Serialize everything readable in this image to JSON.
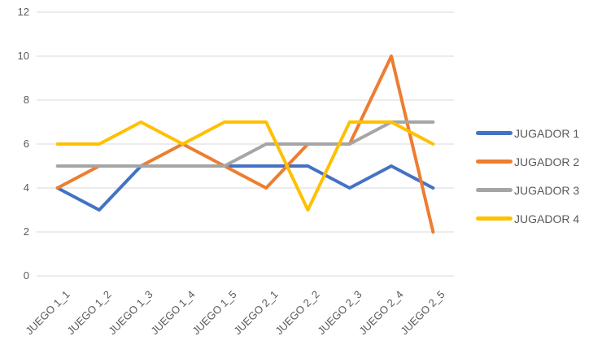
{
  "chart_data": {
    "type": "line",
    "title": "",
    "xlabel": "",
    "ylabel": "",
    "categories": [
      "JUEGO 1_1",
      "JUEGO 1_2",
      "JUEGO 1_3",
      "JUEGO 1_4",
      "JUEGO 1_5",
      "JUEGO 2_1",
      "JUEGO 2_2",
      "JUEGO 2_3",
      "JUEGO 2_4",
      "JUEGO 2_5"
    ],
    "series": [
      {
        "name": "JUGADOR 1",
        "color": "#4472C4",
        "values": [
          4,
          3,
          5,
          5,
          5,
          5,
          5,
          4,
          5,
          4
        ]
      },
      {
        "name": "JUGADOR 2",
        "color": "#ED7D31",
        "values": [
          4,
          5,
          5,
          6,
          5,
          4,
          6,
          6,
          10,
          2
        ]
      },
      {
        "name": "JUGADOR 3",
        "color": "#A5A5A5",
        "values": [
          5,
          5,
          5,
          5,
          5,
          6,
          6,
          6,
          7,
          7
        ]
      },
      {
        "name": "JUGADOR 4",
        "color": "#FFC000",
        "values": [
          6,
          6,
          7,
          6,
          7,
          7,
          3,
          7,
          7,
          6
        ]
      }
    ],
    "ylim": [
      0,
      12
    ],
    "ytick_step": 2,
    "ytick_labels": [
      "0",
      "2",
      "4",
      "6",
      "8",
      "10",
      "12"
    ],
    "grid": true,
    "legend_position": "right"
  },
  "colors": {
    "background": "#FFFFFF",
    "gridline": "#D9D9D9",
    "axis_text": "#595959"
  }
}
